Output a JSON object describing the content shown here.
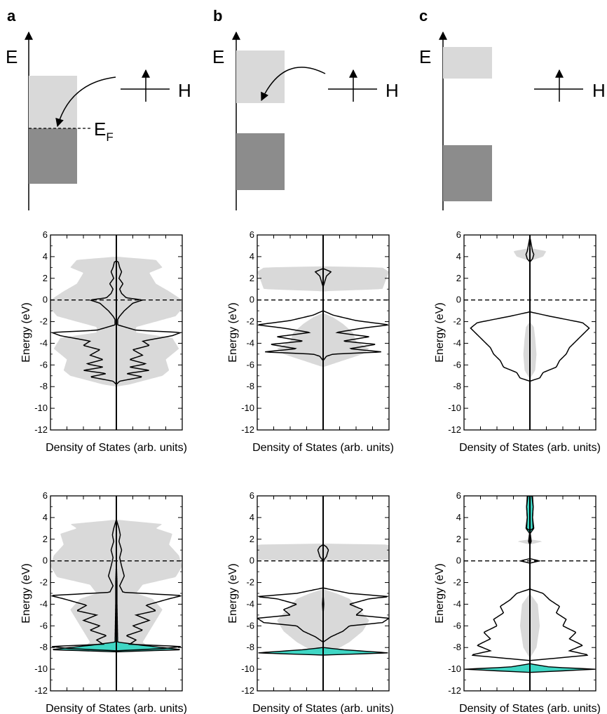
{
  "panels": [
    {
      "letter": "a",
      "schematic": {
        "energy_label": "E",
        "level_label": "H",
        "fermi_label": "E",
        "fermi_sub": "F",
        "has_fermi": true,
        "arrow_dir": "into-band"
      }
    },
    {
      "letter": "b",
      "schematic": {
        "energy_label": "E",
        "level_label": "H",
        "has_fermi": false,
        "arrow_dir": "into-conduction"
      }
    },
    {
      "letter": "c",
      "schematic": {
        "energy_label": "E",
        "level_label": "H",
        "has_fermi": false,
        "arrow_dir": "none"
      }
    }
  ],
  "chart_data": [
    {
      "type": "area",
      "panel": "a",
      "row": 1,
      "ylabel": "Energy (eV)",
      "xlabel": "Density of States (arb. units)",
      "ylim": [
        -12,
        6
      ],
      "yticks": [
        6,
        4,
        2,
        0,
        -2,
        -4,
        -6,
        -8,
        -10,
        -12
      ],
      "fermi_level": 0,
      "bulk_dos": [
        [
          -8,
          0
        ],
        [
          -7.8,
          0.2
        ],
        [
          -7,
          0.7
        ],
        [
          -6.5,
          0.8
        ],
        [
          -5.5,
          0.75
        ],
        [
          -4.5,
          0.95
        ],
        [
          -3.5,
          0.85
        ],
        [
          -3,
          0.3
        ],
        [
          -2.5,
          0.3
        ],
        [
          -1.5,
          0.9
        ],
        [
          -0.8,
          1
        ],
        [
          0,
          1
        ],
        [
          0.8,
          0.8
        ],
        [
          1.5,
          0.6
        ],
        [
          2.5,
          0.5
        ],
        [
          3,
          0.7
        ],
        [
          3.7,
          0.6
        ],
        [
          4,
          0
        ]
      ],
      "local_dos": [
        [
          -7.8,
          0
        ],
        [
          -7.5,
          0.05
        ],
        [
          -7.1,
          0.4
        ],
        [
          -6.8,
          0.15
        ],
        [
          -6.5,
          0.5
        ],
        [
          -6.2,
          0.2
        ],
        [
          -5.9,
          0.45
        ],
        [
          -5.5,
          0.2
        ],
        [
          -5.1,
          0.4
        ],
        [
          -4.6,
          0.25
        ],
        [
          -4.2,
          0.5
        ],
        [
          -3.8,
          0.4
        ],
        [
          -3.3,
          0.85
        ],
        [
          -3.0,
          0.98
        ],
        [
          -2.8,
          0.3
        ],
        [
          -2.3,
          0.02
        ],
        [
          -1.8,
          0.02
        ],
        [
          -1.5,
          0.05
        ],
        [
          -1,
          0.12
        ],
        [
          -0.3,
          0.25
        ],
        [
          0,
          0.4
        ],
        [
          0.2,
          0.15
        ],
        [
          0.6,
          0.08
        ],
        [
          1,
          0.05
        ],
        [
          1.5,
          0.1
        ],
        [
          2,
          0.04
        ],
        [
          2.6,
          0.08
        ],
        [
          3,
          0.05
        ],
        [
          3.5,
          0.03
        ],
        [
          3.6,
          0
        ]
      ],
      "adsorbate_dos": []
    },
    {
      "type": "area",
      "panel": "b",
      "row": 1,
      "ylabel": "Energy (eV)",
      "xlabel": "Density of States (arb. units)",
      "ylim": [
        -12,
        6
      ],
      "yticks": [
        6,
        4,
        2,
        0,
        -2,
        -4,
        -6,
        -8,
        -10,
        -12
      ],
      "fermi_level": 0,
      "bulk_dos": [
        [
          -6.2,
          0
        ],
        [
          -5.8,
          0.2
        ],
        [
          -5,
          0.6
        ],
        [
          -4.5,
          0.7
        ],
        [
          -3.8,
          0.5
        ],
        [
          -3,
          0.45
        ],
        [
          -2.2,
          0.3
        ],
        [
          -1.6,
          0.15
        ],
        [
          -1.2,
          0
        ],
        [
          0.8,
          0
        ],
        [
          1,
          0.9
        ],
        [
          2.6,
          1
        ],
        [
          3,
          0.9
        ],
        [
          3.1,
          0
        ]
      ],
      "local_dos": [
        [
          -5.6,
          0
        ],
        [
          -5.2,
          0.05
        ],
        [
          -5,
          0.15
        ],
        [
          -4.8,
          0.9
        ],
        [
          -4.5,
          0.4
        ],
        [
          -4.1,
          0.8
        ],
        [
          -3.8,
          0.3
        ],
        [
          -3.4,
          0.7
        ],
        [
          -3,
          0.2
        ],
        [
          -2.6,
          0.6
        ],
        [
          -2.3,
          1
        ],
        [
          -1.9,
          0.5
        ],
        [
          -1.4,
          0.15
        ],
        [
          -1,
          0
        ],
        [
          1.2,
          0
        ],
        [
          1.6,
          0.02
        ],
        [
          2.2,
          0.05
        ],
        [
          2.6,
          0.12
        ],
        [
          2.9,
          0
        ]
      ],
      "adsorbate_dos": []
    },
    {
      "type": "area",
      "panel": "c",
      "row": 1,
      "ylabel": "Energy (eV)",
      "xlabel": "Density of States (arb. units)",
      "ylim": [
        -12,
        6
      ],
      "yticks": [
        6,
        4,
        2,
        0,
        -2,
        -4,
        -6,
        -8,
        -10,
        -12
      ],
      "fermi_level": 0,
      "bulk_dos": [
        [
          -7.3,
          0
        ],
        [
          -6.5,
          0.08
        ],
        [
          -5,
          0.1
        ],
        [
          -3.5,
          0.08
        ],
        [
          -2.5,
          0.06
        ],
        [
          -2,
          0
        ],
        [
          3.6,
          0
        ],
        [
          4,
          0.2
        ],
        [
          4.5,
          0.25
        ],
        [
          4.8,
          0
        ]
      ],
      "local_dos": [
        [
          -7.5,
          0
        ],
        [
          -7.2,
          0.15
        ],
        [
          -6.7,
          0.2
        ],
        [
          -6.2,
          0.4
        ],
        [
          -5.6,
          0.45
        ],
        [
          -5,
          0.55
        ],
        [
          -4.4,
          0.6
        ],
        [
          -3.8,
          0.7
        ],
        [
          -3.2,
          0.8
        ],
        [
          -2.6,
          0.9
        ],
        [
          -2.1,
          0.8
        ],
        [
          -1.5,
          0.3
        ],
        [
          -1.1,
          0
        ],
        [
          3.5,
          0
        ],
        [
          3.8,
          0.04
        ],
        [
          4.2,
          0.06
        ],
        [
          4.5,
          0.04
        ],
        [
          5.8,
          0
        ]
      ],
      "adsorbate_dos": []
    },
    {
      "type": "area",
      "panel": "a",
      "row": 2,
      "ylabel": "Energy (eV)",
      "xlabel": "Density of States (arb. units)",
      "ylim": [
        -12,
        6
      ],
      "yticks": [
        6,
        4,
        2,
        0,
        -2,
        -4,
        -6,
        -8,
        -10,
        -12
      ],
      "fermi_level": 0,
      "bulk_dos": [
        [
          -8.4,
          0
        ],
        [
          -8,
          0.5
        ],
        [
          -7.5,
          0.4
        ],
        [
          -6.5,
          0.5
        ],
        [
          -5.5,
          0.6
        ],
        [
          -4.5,
          0.7
        ],
        [
          -3.5,
          0.55
        ],
        [
          -3,
          0.3
        ],
        [
          -2.2,
          0.4
        ],
        [
          -1.5,
          0.9
        ],
        [
          -0.5,
          1
        ],
        [
          0.5,
          0.95
        ],
        [
          1.5,
          0.8
        ],
        [
          2.5,
          0.85
        ],
        [
          3,
          0.6
        ],
        [
          3.4,
          0.7
        ],
        [
          3.8,
          0
        ]
      ],
      "local_dos": [
        [
          -8.3,
          0
        ],
        [
          -8.1,
          0.7
        ],
        [
          -7.9,
          1
        ],
        [
          -7.7,
          0.2
        ],
        [
          -7.3,
          0.3
        ],
        [
          -6.9,
          0.15
        ],
        [
          -6.4,
          0.4
        ],
        [
          -6,
          0.25
        ],
        [
          -5.5,
          0.5
        ],
        [
          -5,
          0.3
        ],
        [
          -4.6,
          0.6
        ],
        [
          -4.1,
          0.45
        ],
        [
          -3.5,
          0.8
        ],
        [
          -3.2,
          1
        ],
        [
          -2.9,
          0.1
        ],
        [
          -2.3,
          0.05
        ],
        [
          -1.4,
          0.12
        ],
        [
          -0.5,
          0.08
        ],
        [
          0.3,
          0.05
        ],
        [
          1,
          0.08
        ],
        [
          1.8,
          0.04
        ],
        [
          2.4,
          0.06
        ],
        [
          3,
          0.04
        ],
        [
          3.8,
          0
        ]
      ],
      "adsorbate_dos": [
        [
          -8.4,
          0
        ],
        [
          -8.2,
          1
        ],
        [
          -7.8,
          0.4
        ],
        [
          -7.5,
          0.02
        ],
        [
          -4,
          0.01
        ],
        [
          -2,
          0.01
        ],
        [
          0,
          0
        ]
      ]
    },
    {
      "type": "area",
      "panel": "b",
      "row": 2,
      "ylabel": "Energy (eV)",
      "xlabel": "Density of States (arb. units)",
      "ylim": [
        -12,
        6
      ],
      "yticks": [
        6,
        4,
        2,
        0,
        -2,
        -4,
        -6,
        -8,
        -10,
        -12
      ],
      "fermi_level": 0,
      "bulk_dos": [
        [
          -8.7,
          0
        ],
        [
          -8.4,
          1
        ],
        [
          -8.2,
          0.2
        ],
        [
          -7.5,
          0.4
        ],
        [
          -6.5,
          0.6
        ],
        [
          -5.5,
          0.7
        ],
        [
          -4.5,
          0.55
        ],
        [
          -3.5,
          0.4
        ],
        [
          -3,
          0.2
        ],
        [
          -2.6,
          0
        ],
        [
          -0.1,
          0
        ],
        [
          0.1,
          1
        ],
        [
          1.5,
          1
        ],
        [
          1.6,
          0
        ]
      ],
      "local_dos": [
        [
          -7.5,
          0
        ],
        [
          -7,
          0.12
        ],
        [
          -6.5,
          0.3
        ],
        [
          -6,
          0.4
        ],
        [
          -5.7,
          0.9
        ],
        [
          -5.3,
          1
        ],
        [
          -5,
          0.5
        ],
        [
          -4.5,
          0.6
        ],
        [
          -4,
          0.4
        ],
        [
          -3.5,
          0.7
        ],
        [
          -3.3,
          1
        ],
        [
          -3,
          0.4
        ],
        [
          -2.5,
          0
        ],
        [
          0,
          0
        ],
        [
          0.4,
          0.05
        ],
        [
          1,
          0.08
        ],
        [
          1.3,
          0.05
        ],
        [
          1.5,
          0
        ]
      ],
      "adsorbate_dos": [
        [
          -8.7,
          0
        ],
        [
          -8.5,
          1
        ],
        [
          -8.2,
          0.3
        ],
        [
          -8,
          0
        ],
        [
          -5,
          0
        ],
        [
          -4,
          0.01
        ],
        [
          -3,
          0
        ]
      ]
    },
    {
      "type": "area",
      "panel": "c",
      "row": 2,
      "ylabel": "Energy (eV)",
      "xlabel": "Density of States (arb. units)",
      "ylim": [
        -12,
        6
      ],
      "yticks": [
        6,
        4,
        2,
        0,
        -2,
        -4,
        -6,
        -8,
        -10,
        -12
      ],
      "fermi_level": 0,
      "bulk_dos": [
        [
          -9,
          0
        ],
        [
          -8,
          0.1
        ],
        [
          -6,
          0.15
        ],
        [
          -4,
          0.12
        ],
        [
          -3,
          0
        ],
        [
          1.5,
          0
        ],
        [
          1.8,
          0.2
        ],
        [
          2,
          0
        ],
        [
          5,
          0
        ],
        [
          5.5,
          0.05
        ],
        [
          6,
          0
        ]
      ],
      "local_dos": [
        [
          -9.2,
          0
        ],
        [
          -8.7,
          0.9
        ],
        [
          -8.3,
          0.6
        ],
        [
          -7.8,
          0.8
        ],
        [
          -7.2,
          0.6
        ],
        [
          -6.6,
          0.7
        ],
        [
          -6,
          0.5
        ],
        [
          -5.4,
          0.55
        ],
        [
          -4.8,
          0.4
        ],
        [
          -4.2,
          0.45
        ],
        [
          -3.6,
          0.3
        ],
        [
          -3,
          0.2
        ],
        [
          -2.6,
          0
        ],
        [
          -0.2,
          0
        ],
        [
          0,
          0.15
        ],
        [
          0.2,
          0
        ],
        [
          1.5,
          0
        ],
        [
          1.8,
          0.02
        ],
        [
          2.8,
          0
        ],
        [
          3,
          0.05
        ],
        [
          4,
          0.04
        ],
        [
          5,
          0.05
        ],
        [
          6,
          0.03
        ]
      ],
      "adsorbate_dos": [
        [
          -10.3,
          0
        ],
        [
          -10,
          1
        ],
        [
          -9.8,
          0.3
        ],
        [
          -9.5,
          0
        ],
        [
          2.5,
          0
        ],
        [
          3,
          0.06
        ],
        [
          4,
          0.04
        ],
        [
          5,
          0.05
        ],
        [
          6,
          0.04
        ]
      ]
    }
  ]
}
